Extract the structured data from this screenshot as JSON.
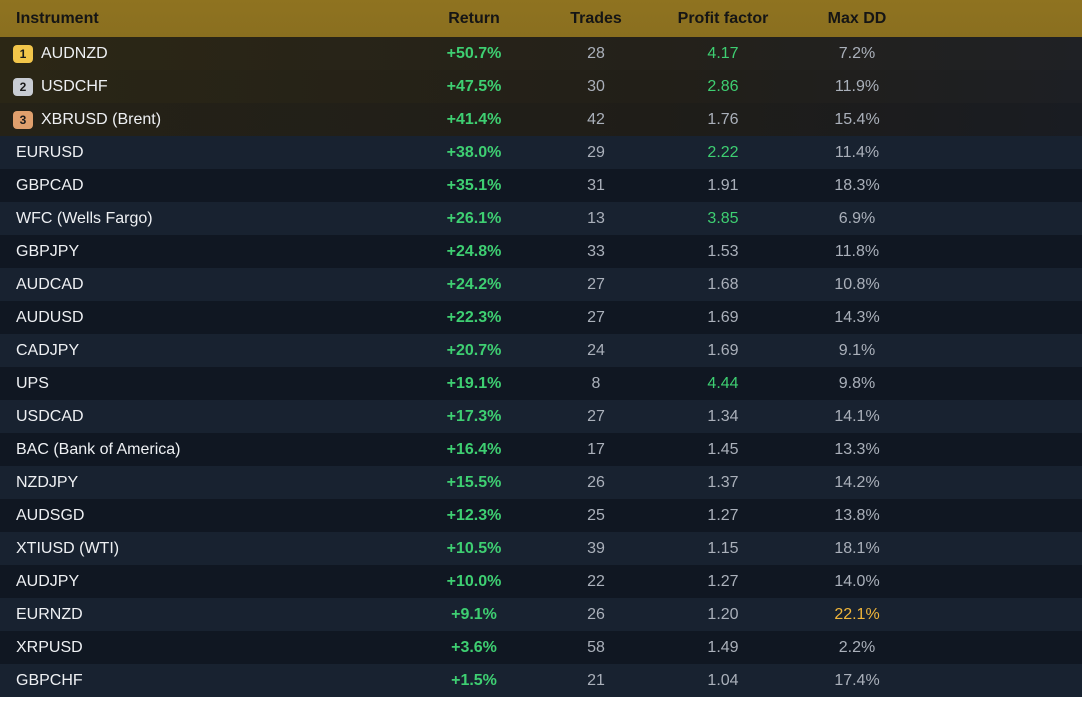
{
  "columns": {
    "instrument": "Instrument",
    "return": "Return",
    "trades": "Trades",
    "profit_factor": "Profit factor",
    "max_dd": "Max DD"
  },
  "colors": {
    "header_bg": "#8f7320",
    "positive": "#3ecf72",
    "warning": "#f0b63a",
    "badge_gold": "#f3c64a",
    "badge_silver": "#c8ccd3",
    "badge_bronze": "#e0a06d"
  },
  "rows": [
    {
      "rank": "1",
      "instrument": "AUDNZD",
      "return": "+50.7%",
      "trades": "28",
      "profit_factor": "4.17",
      "max_dd": "7.2%"
    },
    {
      "rank": "2",
      "instrument": "USDCHF",
      "return": "+47.5%",
      "trades": "30",
      "profit_factor": "2.86",
      "max_dd": "11.9%"
    },
    {
      "rank": "3",
      "instrument": "XBRUSD (Brent)",
      "return": "+41.4%",
      "trades": "42",
      "profit_factor": "1.76",
      "max_dd": "15.4%"
    },
    {
      "instrument": "EURUSD",
      "return": "+38.0%",
      "trades": "29",
      "profit_factor": "2.22",
      "max_dd": "11.4%"
    },
    {
      "instrument": "GBPCAD",
      "return": "+35.1%",
      "trades": "31",
      "profit_factor": "1.91",
      "max_dd": "18.3%"
    },
    {
      "instrument": "WFC (Wells Fargo)",
      "return": "+26.1%",
      "trades": "13",
      "profit_factor": "3.85",
      "max_dd": "6.9%"
    },
    {
      "instrument": "GBPJPY",
      "return": "+24.8%",
      "trades": "33",
      "profit_factor": "1.53",
      "max_dd": "11.8%"
    },
    {
      "instrument": "AUDCAD",
      "return": "+24.2%",
      "trades": "27",
      "profit_factor": "1.68",
      "max_dd": "10.8%"
    },
    {
      "instrument": "AUDUSD",
      "return": "+22.3%",
      "trades": "27",
      "profit_factor": "1.69",
      "max_dd": "14.3%"
    },
    {
      "instrument": "CADJPY",
      "return": "+20.7%",
      "trades": "24",
      "profit_factor": "1.69",
      "max_dd": "9.1%"
    },
    {
      "instrument": "UPS",
      "return": "+19.1%",
      "trades": "8",
      "profit_factor": "4.44",
      "max_dd": "9.8%"
    },
    {
      "instrument": "USDCAD",
      "return": "+17.3%",
      "trades": "27",
      "profit_factor": "1.34",
      "max_dd": "14.1%"
    },
    {
      "instrument": "BAC (Bank of America)",
      "return": "+16.4%",
      "trades": "17",
      "profit_factor": "1.45",
      "max_dd": "13.3%"
    },
    {
      "instrument": "NZDJPY",
      "return": "+15.5%",
      "trades": "26",
      "profit_factor": "1.37",
      "max_dd": "14.2%"
    },
    {
      "instrument": "AUDSGD",
      "return": "+12.3%",
      "trades": "25",
      "profit_factor": "1.27",
      "max_dd": "13.8%"
    },
    {
      "instrument": "XTIUSD (WTI)",
      "return": "+10.5%",
      "trades": "39",
      "profit_factor": "1.15",
      "max_dd": "18.1%"
    },
    {
      "instrument": "AUDJPY",
      "return": "+10.0%",
      "trades": "22",
      "profit_factor": "1.27",
      "max_dd": "14.0%"
    },
    {
      "instrument": "EURNZD",
      "return": "+9.1%",
      "trades": "26",
      "profit_factor": "1.20",
      "max_dd": "22.1%"
    },
    {
      "instrument": "XRPUSD",
      "return": "+3.6%",
      "trades": "58",
      "profit_factor": "1.49",
      "max_dd": "2.2%"
    },
    {
      "instrument": "GBPCHF",
      "return": "+1.5%",
      "trades": "21",
      "profit_factor": "1.04",
      "max_dd": "17.4%"
    }
  ]
}
